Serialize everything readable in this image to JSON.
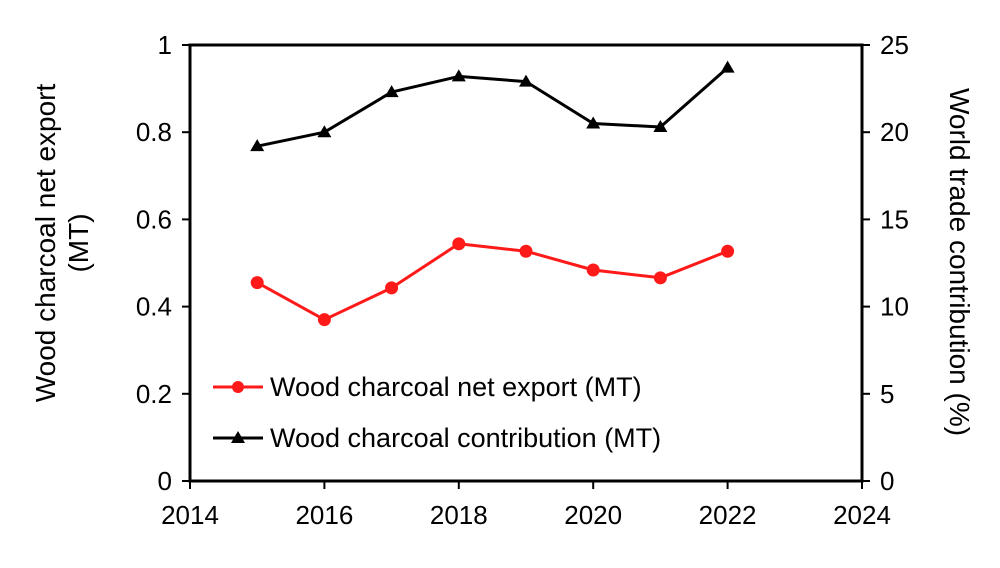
{
  "chart_data": {
    "type": "line",
    "title": "",
    "xlabel": "",
    "xlim": [
      2014,
      2024
    ],
    "xticks": [
      2014,
      2016,
      2018,
      2020,
      2022,
      2024
    ],
    "y_left": {
      "label_line1": "Wood charcoal net export",
      "label_line2": "(MT)",
      "lim": [
        0,
        1
      ],
      "ticks": [
        0,
        0.2,
        0.4,
        0.6,
        0.8,
        1
      ],
      "tick_labels": [
        "0",
        "0.2",
        "0.4",
        "0.6",
        "0.8",
        "1"
      ]
    },
    "y_right": {
      "label": "World trade contribution (%)",
      "lim": [
        0,
        25
      ],
      "ticks": [
        0,
        5,
        10,
        15,
        20,
        25
      ],
      "tick_labels": [
        "0",
        "5",
        "10",
        "15",
        "20",
        "25"
      ]
    },
    "grid": false,
    "legend_position": "bottom-left",
    "series": [
      {
        "name": "Wood charcoal net export (MT)",
        "axis": "left",
        "marker": "circle",
        "color": "#ff1a1a",
        "x": [
          2015,
          2016,
          2017,
          2018,
          2019,
          2020,
          2021,
          2022
        ],
        "values": [
          0.455,
          0.37,
          0.443,
          0.544,
          0.527,
          0.484,
          0.466,
          0.527
        ]
      },
      {
        "name": "Wood charcoal contribution (MT)",
        "axis": "right",
        "marker": "triangle",
        "color": "#000000",
        "x": [
          2015,
          2016,
          2017,
          2018,
          2019,
          2020,
          2021,
          2022
        ],
        "values": [
          19.2,
          20.0,
          22.3,
          23.2,
          22.9,
          20.5,
          20.3,
          23.7
        ]
      }
    ]
  }
}
